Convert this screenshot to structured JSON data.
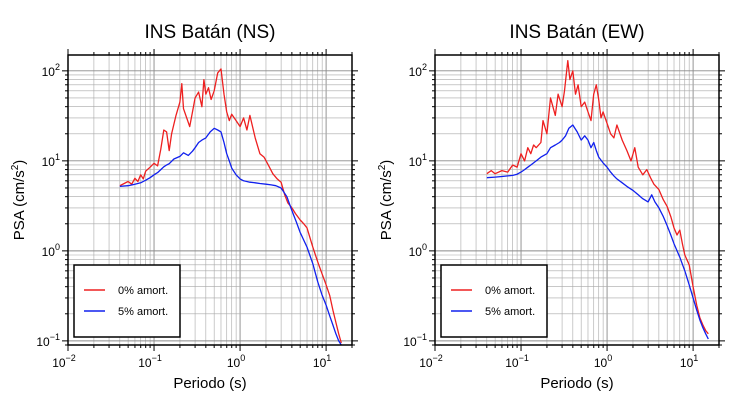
{
  "chart_data": [
    {
      "type": "line",
      "title": "INS Batán (NS)",
      "xlabel": "Periodo (s)",
      "ylabel_main": "PSA (cm/s",
      "ylabel_sup": "2",
      "ylabel_close": ")",
      "xscale": "log",
      "yscale": "log",
      "xlim": [
        0.01,
        20
      ],
      "ylim": [
        0.09,
        150
      ],
      "grid": true,
      "legend_position": "bottom-left",
      "xticks": [
        {
          "base": "10",
          "exp": "−2",
          "value": 0.01
        },
        {
          "base": "10",
          "exp": "−1",
          "value": 0.1
        },
        {
          "base": "10",
          "exp": "0",
          "value": 1
        },
        {
          "base": "10",
          "exp": "1",
          "value": 10
        }
      ],
      "yticks": [
        {
          "label": "10",
          "exp": "2",
          "value": 100
        },
        {
          "label": "10",
          "exp": "1",
          "value": 10
        },
        {
          "label": "10",
          "exp": "0",
          "value": 1
        },
        {
          "label": "10",
          "exp": "−1",
          "value": 0.1
        }
      ],
      "series": [
        {
          "name": "0% amort.",
          "color": "#ee2020",
          "points": [
            [
              0.04,
              5.3
            ],
            [
              0.045,
              5.6
            ],
            [
              0.05,
              5.9
            ],
            [
              0.055,
              5.5
            ],
            [
              0.06,
              6.4
            ],
            [
              0.065,
              5.9
            ],
            [
              0.07,
              7.0
            ],
            [
              0.075,
              6.3
            ],
            [
              0.08,
              7.7
            ],
            [
              0.09,
              8.5
            ],
            [
              0.1,
              9.4
            ],
            [
              0.11,
              8.8
            ],
            [
              0.12,
              13.5
            ],
            [
              0.13,
              22
            ],
            [
              0.14,
              21
            ],
            [
              0.15,
              13
            ],
            [
              0.16,
              20
            ],
            [
              0.18,
              32
            ],
            [
              0.2,
              45
            ],
            [
              0.21,
              72
            ],
            [
              0.22,
              38
            ],
            [
              0.24,
              30
            ],
            [
              0.26,
              24
            ],
            [
              0.28,
              35
            ],
            [
              0.3,
              50
            ],
            [
              0.33,
              58
            ],
            [
              0.36,
              40
            ],
            [
              0.38,
              80
            ],
            [
              0.4,
              55
            ],
            [
              0.43,
              65
            ],
            [
              0.46,
              48
            ],
            [
              0.5,
              60
            ],
            [
              0.55,
              95
            ],
            [
              0.6,
              105
            ],
            [
              0.65,
              55
            ],
            [
              0.7,
              35
            ],
            [
              0.75,
              28
            ],
            [
              0.8,
              33
            ],
            [
              0.9,
              28
            ],
            [
              1.0,
              24
            ],
            [
              1.1,
              30
            ],
            [
              1.2,
              22
            ],
            [
              1.3,
              32
            ],
            [
              1.5,
              18
            ],
            [
              1.7,
              12
            ],
            [
              1.9,
              11
            ],
            [
              2.1,
              9.2
            ],
            [
              2.4,
              7.2
            ],
            [
              2.7,
              6.3
            ],
            [
              3.0,
              5.8
            ],
            [
              3.3,
              4.2
            ],
            [
              3.6,
              3.4
            ],
            [
              4.0,
              3.0
            ],
            [
              4.4,
              2.6
            ],
            [
              5.0,
              2.2
            ],
            [
              5.5,
              2.0
            ],
            [
              6.0,
              1.8
            ],
            [
              7.0,
              1.1
            ],
            [
              8.0,
              0.75
            ],
            [
              9.0,
              0.55
            ],
            [
              10,
              0.42
            ],
            [
              11,
              0.32
            ],
            [
              12,
              0.22
            ],
            [
              13,
              0.16
            ],
            [
              14,
              0.12
            ],
            [
              15,
              0.095
            ]
          ]
        },
        {
          "name": "5% amort.",
          "color": "#1020ee",
          "points": [
            [
              0.04,
              5.2
            ],
            [
              0.05,
              5.3
            ],
            [
              0.06,
              5.5
            ],
            [
              0.07,
              5.7
            ],
            [
              0.08,
              6.1
            ],
            [
              0.09,
              6.5
            ],
            [
              0.1,
              7.0
            ],
            [
              0.11,
              7.4
            ],
            [
              0.12,
              8.0
            ],
            [
              0.13,
              8.6
            ],
            [
              0.14,
              9.0
            ],
            [
              0.15,
              9.3
            ],
            [
              0.17,
              10.5
            ],
            [
              0.2,
              11.2
            ],
            [
              0.22,
              12.3
            ],
            [
              0.25,
              11.5
            ],
            [
              0.28,
              12.8
            ],
            [
              0.3,
              14
            ],
            [
              0.33,
              16
            ],
            [
              0.36,
              17
            ],
            [
              0.4,
              18
            ],
            [
              0.45,
              21
            ],
            [
              0.5,
              23
            ],
            [
              0.55,
              22
            ],
            [
              0.6,
              21
            ],
            [
              0.65,
              16
            ],
            [
              0.7,
              12
            ],
            [
              0.75,
              10
            ],
            [
              0.8,
              8.3
            ],
            [
              0.9,
              7.0
            ],
            [
              1.0,
              6.3
            ],
            [
              1.1,
              6.0
            ],
            [
              1.3,
              5.8
            ],
            [
              1.5,
              5.7
            ],
            [
              1.7,
              5.6
            ],
            [
              2.0,
              5.5
            ],
            [
              2.3,
              5.4
            ],
            [
              2.6,
              5.3
            ],
            [
              3.0,
              5.0
            ],
            [
              3.5,
              4.0
            ],
            [
              4.0,
              2.8
            ],
            [
              4.5,
              2.1
            ],
            [
              5.0,
              1.6
            ],
            [
              6.0,
              1.1
            ],
            [
              7.0,
              0.72
            ],
            [
              8.0,
              0.45
            ],
            [
              9.0,
              0.32
            ],
            [
              10,
              0.25
            ],
            [
              11,
              0.19
            ],
            [
              12,
              0.15
            ],
            [
              13,
              0.12
            ],
            [
              14,
              0.1
            ],
            [
              15,
              0.09
            ]
          ]
        }
      ]
    },
    {
      "type": "line",
      "title": "INS Batán (EW)",
      "xlabel": "Periodo (s)",
      "ylabel_main": "PSA (cm/s",
      "ylabel_sup": "2",
      "ylabel_close": ")",
      "xscale": "log",
      "yscale": "log",
      "xlim": [
        0.01,
        20
      ],
      "ylim": [
        0.09,
        150
      ],
      "grid": true,
      "legend_position": "bottom-left",
      "xticks": [
        {
          "base": "10",
          "exp": "−2",
          "value": 0.01
        },
        {
          "base": "10",
          "exp": "−1",
          "value": 0.1
        },
        {
          "base": "10",
          "exp": "0",
          "value": 1
        },
        {
          "base": "10",
          "exp": "1",
          "value": 10
        }
      ],
      "yticks": [
        {
          "label": "10",
          "exp": "2",
          "value": 100
        },
        {
          "label": "10",
          "exp": "1",
          "value": 10
        },
        {
          "label": "10",
          "exp": "0",
          "value": 1
        },
        {
          "label": "10",
          "exp": "−1",
          "value": 0.1
        }
      ],
      "series": [
        {
          "name": "0% amort.",
          "color": "#ee2020",
          "points": [
            [
              0.04,
              7.2
            ],
            [
              0.045,
              7.8
            ],
            [
              0.05,
              7.2
            ],
            [
              0.06,
              7.8
            ],
            [
              0.07,
              7.5
            ],
            [
              0.08,
              9.0
            ],
            [
              0.09,
              8.5
            ],
            [
              0.1,
              12
            ],
            [
              0.11,
              10
            ],
            [
              0.12,
              14
            ],
            [
              0.13,
              12
            ],
            [
              0.14,
              15
            ],
            [
              0.15,
              14
            ],
            [
              0.17,
              16
            ],
            [
              0.18,
              28
            ],
            [
              0.2,
              20
            ],
            [
              0.22,
              50
            ],
            [
              0.25,
              32
            ],
            [
              0.27,
              55
            ],
            [
              0.3,
              40
            ],
            [
              0.32,
              60
            ],
            [
              0.35,
              130
            ],
            [
              0.37,
              80
            ],
            [
              0.4,
              100
            ],
            [
              0.43,
              55
            ],
            [
              0.46,
              70
            ],
            [
              0.5,
              40
            ],
            [
              0.55,
              45
            ],
            [
              0.6,
              35
            ],
            [
              0.65,
              28
            ],
            [
              0.7,
              55
            ],
            [
              0.75,
              70
            ],
            [
              0.8,
              48
            ],
            [
              0.85,
              30
            ],
            [
              0.9,
              35
            ],
            [
              1.0,
              26
            ],
            [
              1.1,
              20
            ],
            [
              1.2,
              18
            ],
            [
              1.3,
              25
            ],
            [
              1.5,
              17
            ],
            [
              1.7,
              13
            ],
            [
              1.9,
              10
            ],
            [
              2.1,
              14
            ],
            [
              2.3,
              8.5
            ],
            [
              2.6,
              7.0
            ],
            [
              2.9,
              8.0
            ],
            [
              3.2,
              6.5
            ],
            [
              3.5,
              5.5
            ],
            [
              4.0,
              4.8
            ],
            [
              4.5,
              3.7
            ],
            [
              5.0,
              3.1
            ],
            [
              5.5,
              2.4
            ],
            [
              6.0,
              1.8
            ],
            [
              6.5,
              1.5
            ],
            [
              7.0,
              1.7
            ],
            [
              7.5,
              1.2
            ],
            [
              8,
              0.9
            ],
            [
              9,
              0.7
            ],
            [
              10,
              0.4
            ],
            [
              11,
              0.25
            ],
            [
              12,
              0.18
            ],
            [
              13,
              0.15
            ],
            [
              14,
              0.13
            ],
            [
              15,
              0.12
            ]
          ]
        },
        {
          "name": "5% amort.",
          "color": "#1020ee",
          "points": [
            [
              0.04,
              6.5
            ],
            [
              0.05,
              6.6
            ],
            [
              0.06,
              6.7
            ],
            [
              0.07,
              6.8
            ],
            [
              0.08,
              6.9
            ],
            [
              0.09,
              7.1
            ],
            [
              0.1,
              7.5
            ],
            [
              0.11,
              8.0
            ],
            [
              0.12,
              8.5
            ],
            [
              0.13,
              9.0
            ],
            [
              0.14,
              9.5
            ],
            [
              0.15,
              10
            ],
            [
              0.17,
              11
            ],
            [
              0.2,
              12
            ],
            [
              0.22,
              14
            ],
            [
              0.25,
              15
            ],
            [
              0.28,
              16
            ],
            [
              0.3,
              17
            ],
            [
              0.33,
              19
            ],
            [
              0.36,
              23
            ],
            [
              0.4,
              25
            ],
            [
              0.45,
              21
            ],
            [
              0.5,
              17
            ],
            [
              0.55,
              19
            ],
            [
              0.6,
              17
            ],
            [
              0.65,
              14
            ],
            [
              0.7,
              16
            ],
            [
              0.75,
              13
            ],
            [
              0.8,
              11
            ],
            [
              0.9,
              9.5
            ],
            [
              1.0,
              8.5
            ],
            [
              1.1,
              7.5
            ],
            [
              1.2,
              6.8
            ],
            [
              1.3,
              6.3
            ],
            [
              1.5,
              5.7
            ],
            [
              1.7,
              5.2
            ],
            [
              2.0,
              4.7
            ],
            [
              2.3,
              4.2
            ],
            [
              2.6,
              3.8
            ],
            [
              3.0,
              3.5
            ],
            [
              3.3,
              4.2
            ],
            [
              3.6,
              3.5
            ],
            [
              4.0,
              3.0
            ],
            [
              4.5,
              2.4
            ],
            [
              5.0,
              1.9
            ],
            [
              5.5,
              1.5
            ],
            [
              6.0,
              1.2
            ],
            [
              7.0,
              0.85
            ],
            [
              8.0,
              0.6
            ],
            [
              9.0,
              0.42
            ],
            [
              10,
              0.3
            ],
            [
              11,
              0.22
            ],
            [
              12,
              0.17
            ],
            [
              13,
              0.14
            ],
            [
              14,
              0.12
            ],
            [
              15,
              0.105
            ]
          ]
        }
      ]
    }
  ]
}
